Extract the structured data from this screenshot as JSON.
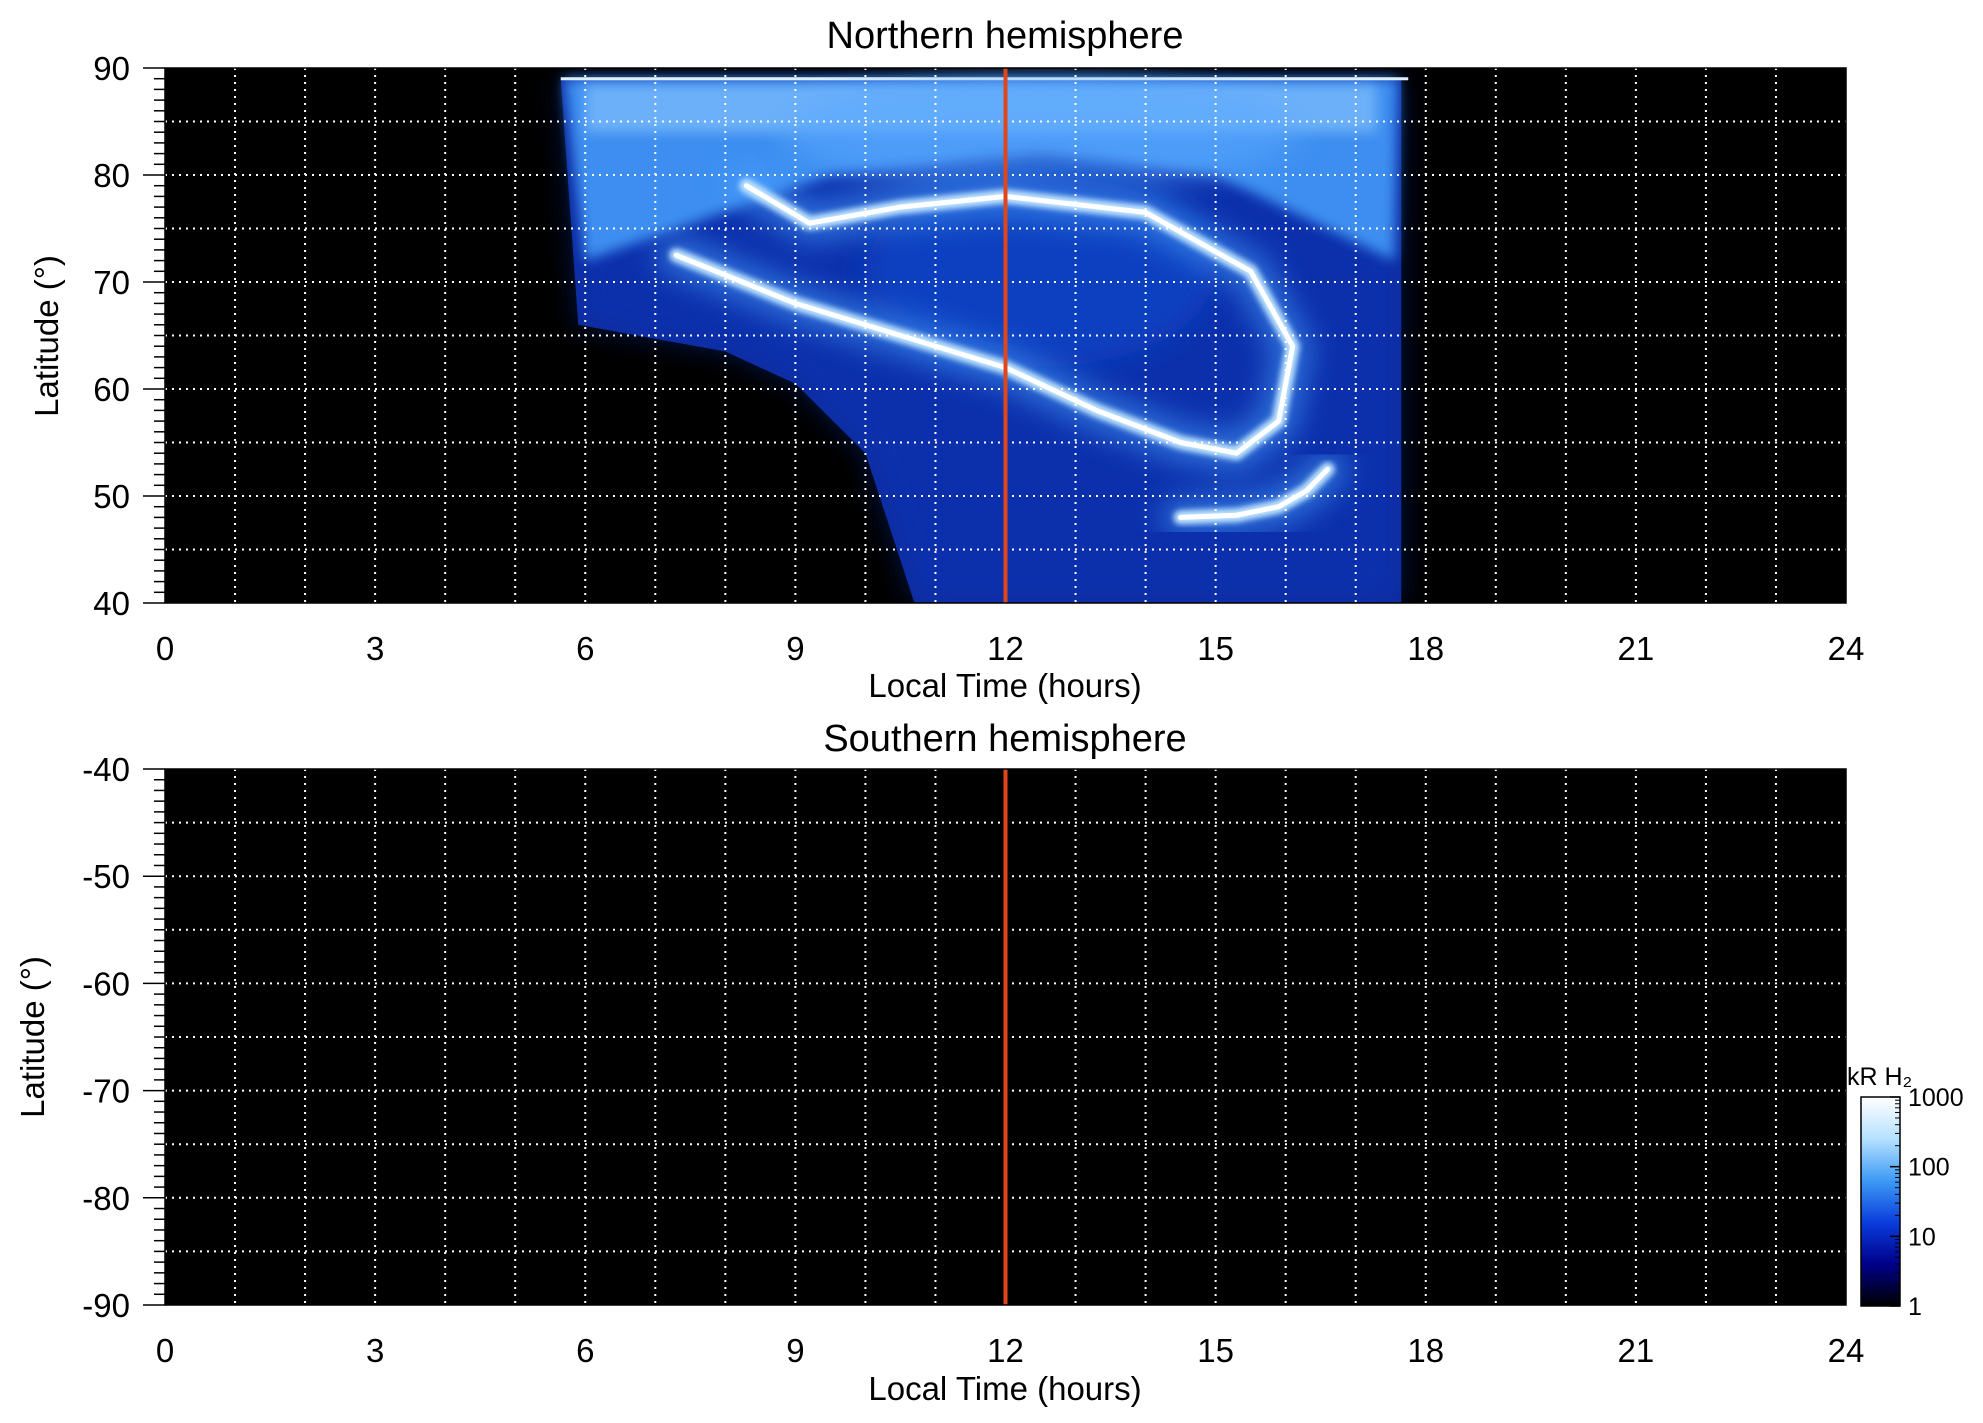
{
  "chart_data": [
    {
      "type": "heatmap",
      "title": "Northern hemisphere",
      "xlabel": "Local Time (hours)",
      "ylabel": "Latitude (°)",
      "xlim": [
        0,
        24
      ],
      "ylim": [
        40,
        90
      ],
      "x_ticks": [
        0,
        3,
        6,
        9,
        12,
        15,
        18,
        21,
        24
      ],
      "x_tick_labels": [
        "0",
        "3",
        "6",
        "9",
        "12",
        "15",
        "18",
        "21",
        "24"
      ],
      "y_ticks": [
        40,
        50,
        60,
        70,
        80,
        90
      ],
      "y_tick_labels": [
        "40",
        "50",
        "60",
        "70",
        "80",
        "90"
      ],
      "grid": "dotted white, every 1 hour and 5°",
      "background": "#000000",
      "reference_line": {
        "x": 12,
        "color": "#e0461c"
      },
      "coverage": {
        "lt_start": 5.65,
        "lt_end": 17.65,
        "lower_boundary": [
          [
            5.9,
            66
          ],
          [
            8,
            63.5
          ],
          [
            9,
            60.5
          ],
          [
            10,
            54
          ],
          [
            10.7,
            40
          ]
        ]
      },
      "features": [
        {
          "name": "main oval arc",
          "points": [
            [
              7.3,
              72.5
            ],
            [
              9,
              68
            ],
            [
              10.5,
              65
            ],
            [
              12,
              62
            ],
            [
              13.3,
              58
            ],
            [
              14.5,
              55
            ],
            [
              15.3,
              54
            ],
            [
              15.9,
              57
            ],
            [
              16.1,
              64
            ],
            [
              15.5,
              71
            ],
            [
              14,
              76.5
            ],
            [
              12,
              78
            ],
            [
              10.5,
              77
            ],
            [
              9.2,
              75.5
            ],
            [
              8.3,
              79
            ]
          ],
          "intensity_kR": 1000
        },
        {
          "name": "low latitude arc",
          "points": [
            [
              14.5,
              48
            ],
            [
              15.3,
              48.2
            ],
            [
              15.9,
              49
            ],
            [
              16.3,
              50.5
            ],
            [
              16.6,
              52.5
            ]
          ],
          "intensity_kR": 800
        },
        {
          "name": "polar cap",
          "center": [
            12.5,
            84
          ],
          "intensity_kR": 200
        },
        {
          "name": "dark region inside oval",
          "center": [
            12.5,
            71
          ],
          "intensity_kR": 40
        }
      ]
    },
    {
      "type": "heatmap",
      "title": "Southern hemisphere",
      "xlabel": "Local Time (hours)",
      "ylabel": "Latitude (°)",
      "xlim": [
        0,
        24
      ],
      "ylim": [
        -90,
        -40
      ],
      "x_ticks": [
        0,
        3,
        6,
        9,
        12,
        15,
        18,
        21,
        24
      ],
      "x_tick_labels": [
        "0",
        "3",
        "6",
        "9",
        "12",
        "15",
        "18",
        "21",
        "24"
      ],
      "y_ticks": [
        -40,
        -50,
        -60,
        -70,
        -80,
        -90
      ],
      "y_tick_labels": [
        "-40",
        "-50",
        "-60",
        "-70",
        "-80",
        "-90"
      ],
      "grid": "dotted white, every 1 hour and 5°",
      "background": "#000000",
      "reference_line": {
        "x": 12,
        "color": "#e0461c"
      },
      "coverage": null,
      "features": []
    }
  ],
  "colorbar": {
    "label": "kR H₂",
    "scale": "log",
    "range": [
      1,
      1000
    ],
    "ticks": [
      1,
      10,
      100,
      1000
    ],
    "tick_labels": [
      "1",
      "10",
      "100",
      "1000"
    ],
    "colors": [
      "#000000",
      "#00008a",
      "#0a3ddc",
      "#3d9af5",
      "#b5e1ff",
      "#ffffff"
    ]
  }
}
